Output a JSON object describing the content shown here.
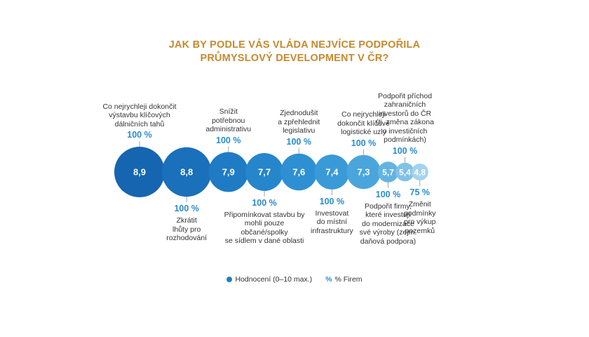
{
  "chart_data": {
    "type": "bubble",
    "title_lines": [
      "JAK BY PODLE VÁS VLÁDA NEJVÍCE PODPOŘILA",
      "PRŮMYSLOVÝ DEVELOPMENT V ČR?"
    ],
    "items": [
      {
        "label": "Co nejrychleji dokončit výstavbu klíčových dálničních tahů",
        "lines": [
          "Co nejrychleji dokončit",
          "výstavbu klíčových",
          "dálničních tahů"
        ],
        "score": 8.9,
        "score_label": "8,9",
        "percent_label": "100 %",
        "position": "top",
        "color": "#1565b0"
      },
      {
        "label": "Zkrátit lhůty pro rozhodování",
        "lines": [
          "Zkrátit",
          "lhůty pro",
          "rozhodování"
        ],
        "score": 8.8,
        "score_label": "8,8",
        "percent_label": "100 %",
        "position": "bottom",
        "color": "#1a70ba"
      },
      {
        "label": "Snížit potřebnou administrativu",
        "lines": [
          "Snížit",
          "potřebnou",
          "administrativu"
        ],
        "score": 7.9,
        "score_label": "7,9",
        "percent_label": "100 %",
        "position": "top",
        "color": "#1f7cc4"
      },
      {
        "label": "Připomínkovat stavbu by mohli pouze občané/spolky se sídlem v dané oblasti",
        "lines": [
          "Připomínkovat stavbu by",
          "mohli pouze občané/spolky",
          "se sídlem v dané oblasti"
        ],
        "score": 7.7,
        "score_label": "7,7",
        "percent_label": "100 %",
        "position": "bottom",
        "color": "#2686cb"
      },
      {
        "label": "Zjednodušit a zpřehlednit legislativu",
        "lines": [
          "Zjednodušit",
          "a zpřehlednit",
          "legislativu"
        ],
        "score": 7.6,
        "score_label": "7,6",
        "percent_label": "100 %",
        "position": "top",
        "color": "#2e90d2"
      },
      {
        "label": "Investovat do místní infrastruktury",
        "lines": [
          "Investovat",
          "do místní",
          "infrastruktury"
        ],
        "score": 7.4,
        "score_label": "7,4",
        "percent_label": "100 %",
        "position": "bottom",
        "color": "#3a9ad7"
      },
      {
        "label": "Co nejrychleji dokončit klíčové logistické uzly",
        "lines": [
          "Co nejrychleji",
          "dokončit klíčové",
          "logistické uzly"
        ],
        "score": 7.3,
        "score_label": "7,3",
        "percent_label": "100 %",
        "position": "top",
        "color": "#4aa5dc"
      },
      {
        "label": "Podpořit firmy, které investují do modernizace své výroby (zejm. daňová podpora)",
        "lines": [
          "Podpořit firmy,",
          "které investují",
          "do modernizace",
          "své výroby (zejm.",
          "daňová podpora)"
        ],
        "score": 5.7,
        "score_label": "5,7",
        "percent_label": "100 %",
        "position": "bottom",
        "color": "#63b3e2"
      },
      {
        "label": "Podpořit příchod zahraničních investorů do ČR (tj. změna zákona o investičních podmínkách)",
        "lines": [
          "Podpořit příchod",
          "zahraničních",
          "investorů do ČR",
          "(tj. změna zákona",
          "o investičních",
          "podmínkách)"
        ],
        "score": 5.4,
        "score_label": "5,4",
        "percent_label": "100 %",
        "position": "top",
        "color": "#80c1e8"
      },
      {
        "label": "Změnit podmínky pro výkup pozemků",
        "lines": [
          "Změnit",
          "podmínky",
          "pro výkup",
          "pozemků"
        ],
        "score": 4.8,
        "score_label": "4,8",
        "percent_label": "75 %",
        "position": "bottom",
        "color": "#a3d3ef"
      }
    ],
    "legend": [
      {
        "symbol": "dot",
        "label": "Hodnocení (0–10 max.)"
      },
      {
        "symbol": "%",
        "label": "% Firem"
      }
    ],
    "score_range": [
      0,
      10
    ]
  }
}
